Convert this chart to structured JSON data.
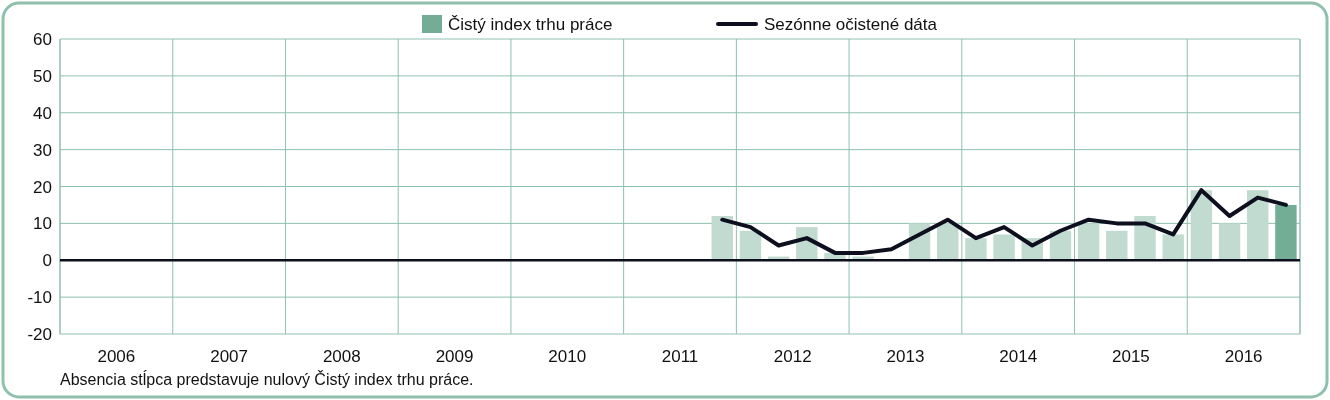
{
  "chart_data": {
    "type": "bar",
    "legend": "top",
    "x": [
      2011.875,
      2012.125,
      2012.375,
      2012.625,
      2012.875,
      2013.125,
      2013.375,
      2013.625,
      2013.875,
      2014.125,
      2014.375,
      2014.625,
      2014.875,
      2015.125,
      2015.375,
      2015.625,
      2015.875,
      2016.125,
      2016.375,
      2016.625,
      2016.875
    ],
    "series": [
      {
        "name": "Čistý index trhu práce",
        "colors": [
          "#c2dbd1",
          "#c2dbd1",
          "#c2dbd1",
          "#c2dbd1",
          "#c2dbd1",
          "#c2dbd1",
          "#c2dbd1",
          "#c2dbd1",
          "#c2dbd1",
          "#c2dbd1",
          "#c2dbd1",
          "#c2dbd1",
          "#c2dbd1",
          "#c2dbd1",
          "#c2dbd1",
          "#c2dbd1",
          "#c2dbd1",
          "#c2dbd1",
          "#c2dbd1",
          "#c2dbd1",
          "#74ad96"
        ],
        "values": [
          12,
          8,
          1,
          9,
          2,
          1,
          0,
          10,
          10,
          6,
          7,
          6,
          8,
          10,
          8,
          12,
          7,
          19,
          10,
          19,
          15
        ]
      },
      {
        "name": "Sezónne očistené dáta",
        "type": "line",
        "color": "#0d0f1e",
        "values": [
          11,
          9,
          4,
          6,
          2,
          2,
          3,
          7,
          11,
          6,
          9,
          4,
          8,
          11,
          10,
          10,
          7,
          19,
          12,
          17,
          15
        ]
      }
    ],
    "xlim": [
      2006,
      2017
    ],
    "xticks": [
      {
        "value": 2006,
        "label": null
      },
      {
        "value": 2006.5,
        "label": "2006"
      },
      {
        "value": 2007,
        "label": null
      },
      {
        "value": 2007.5,
        "label": "2007"
      },
      {
        "value": 2008,
        "label": null
      },
      {
        "value": 2008.5,
        "label": "2008"
      },
      {
        "value": 2009,
        "label": null
      },
      {
        "value": 2009.5,
        "label": "2009"
      },
      {
        "value": 2010,
        "label": null
      },
      {
        "value": 2010.5,
        "label": "2010"
      },
      {
        "value": 2011,
        "label": null
      },
      {
        "value": 2011.5,
        "label": "2011"
      },
      {
        "value": 2012,
        "label": null
      },
      {
        "value": 2012.5,
        "label": "2012"
      },
      {
        "value": 2013,
        "label": null
      },
      {
        "value": 2013.5,
        "label": "2013"
      },
      {
        "value": 2014,
        "label": null
      },
      {
        "value": 2014.5,
        "label": "2014"
      },
      {
        "value": 2015,
        "label": null
      },
      {
        "value": 2015.5,
        "label": "2015"
      },
      {
        "value": 2016,
        "label": null
      },
      {
        "value": 2016.5,
        "label": "2016"
      },
      {
        "value": 2017,
        "label": null
      }
    ],
    "ylim": [
      -20,
      60
    ],
    "yticks": [
      -20,
      -10,
      0,
      10,
      20,
      30,
      40,
      50,
      60
    ],
    "grid": true,
    "annotations": [
      "Absencia stĺpca predstavuje nulový Čistý index trhu práce."
    ]
  }
}
